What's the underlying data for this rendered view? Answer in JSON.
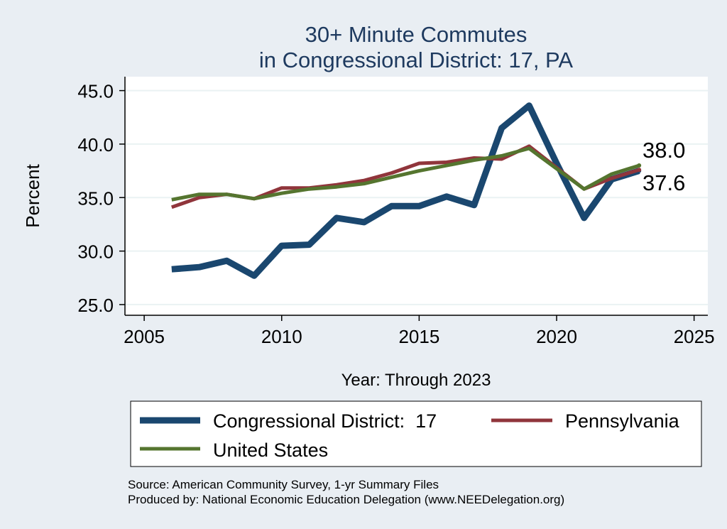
{
  "chart_data": {
    "type": "line",
    "title_line1": "30+ Minute Commutes",
    "title_line2": "in Congressional District:  17, PA",
    "xlabel": "Year: Through 2023",
    "ylabel": "Percent",
    "xlim": [
      2004.3,
      2025.5
    ],
    "ylim": [
      24.0,
      46.3
    ],
    "x_ticks": [
      2005,
      2010,
      2015,
      2020,
      2025
    ],
    "x_tick_labels": [
      "2005",
      "2010",
      "2015",
      "2020",
      "2025"
    ],
    "y_ticks": [
      25,
      30,
      35,
      40,
      45
    ],
    "y_tick_labels": [
      "25.0",
      "30.0",
      "35.0",
      "40.0",
      "45.0"
    ],
    "grid": true,
    "legend_position": "bottom",
    "x": [
      2006,
      2007,
      2008,
      2009,
      2010,
      2011,
      2012,
      2013,
      2014,
      2015,
      2016,
      2017,
      2018,
      2019,
      2020,
      2021,
      2022,
      2023
    ],
    "series": [
      {
        "name": "Congressional District:  17",
        "color": "#1a476f",
        "values": [
          28.3,
          28.5,
          29.1,
          27.7,
          30.5,
          30.6,
          33.1,
          32.7,
          34.2,
          34.2,
          35.1,
          34.3,
          41.5,
          43.6,
          38.2,
          33.1,
          36.7,
          37.5
        ]
      },
      {
        "name": "Pennsylvania",
        "color": "#90353b",
        "values": [
          34.1,
          35.0,
          35.3,
          34.9,
          35.9,
          35.9,
          36.2,
          36.6,
          37.3,
          38.2,
          38.3,
          38.7,
          38.6,
          39.8,
          37.8,
          35.8,
          36.8,
          37.6
        ]
      },
      {
        "name": "United States",
        "color": "#55752f",
        "values": [
          34.8,
          35.3,
          35.3,
          34.9,
          35.4,
          35.8,
          36.0,
          36.3,
          36.9,
          37.5,
          38.0,
          38.5,
          38.9,
          39.6,
          37.7,
          35.8,
          37.2,
          38.0
        ]
      }
    ],
    "end_labels": [
      {
        "text": "38.0",
        "value": 38.0
      },
      {
        "text": "37.6",
        "value": 37.6
      }
    ],
    "notes": [
      "Source: American Community Survey, 1-yr Summary Files",
      "Produced by: National Economic Education Delegation (www.NEEDelegation.org)"
    ]
  }
}
